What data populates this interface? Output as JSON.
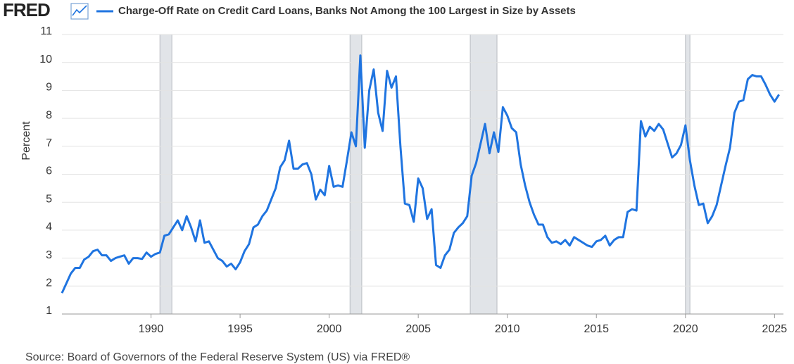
{
  "logo": "FRED",
  "chart_data": {
    "type": "line",
    "y_label": "Percent",
    "source": "Source: Board of Governors of the Federal Reserve System (US) via FRED®",
    "x": [
      1985,
      1985.25,
      1985.5,
      1985.75,
      1986,
      1986.25,
      1986.5,
      1986.75,
      1987,
      1987.25,
      1987.5,
      1987.75,
      1988,
      1988.25,
      1988.5,
      1988.75,
      1989,
      1989.25,
      1989.5,
      1989.75,
      1990,
      1990.25,
      1990.5,
      1990.75,
      1991,
      1991.25,
      1991.5,
      1991.75,
      1992,
      1992.25,
      1992.5,
      1992.75,
      1993,
      1993.25,
      1993.5,
      1993.75,
      1994,
      1994.25,
      1994.5,
      1994.75,
      1995,
      1995.25,
      1995.5,
      1995.75,
      1996,
      1996.25,
      1996.5,
      1996.75,
      1997,
      1997.25,
      1997.5,
      1997.75,
      1998,
      1998.25,
      1998.5,
      1998.75,
      1999,
      1999.25,
      1999.5,
      1999.75,
      2000,
      2000.25,
      2000.5,
      2000.75,
      2001,
      2001.25,
      2001.5,
      2001.75,
      2002,
      2002.25,
      2002.5,
      2002.75,
      2003,
      2003.25,
      2003.5,
      2003.75,
      2004,
      2004.25,
      2004.5,
      2004.75,
      2005,
      2005.25,
      2005.5,
      2005.75,
      2006,
      2006.25,
      2006.5,
      2006.75,
      2007,
      2007.25,
      2007.5,
      2007.75,
      2008,
      2008.25,
      2008.5,
      2008.75,
      2009,
      2009.25,
      2009.5,
      2009.75,
      2010,
      2010.25,
      2010.5,
      2010.75,
      2011,
      2011.25,
      2011.5,
      2011.75,
      2012,
      2012.25,
      2012.5,
      2012.75,
      2013,
      2013.25,
      2013.5,
      2013.75,
      2014,
      2014.25,
      2014.5,
      2014.75,
      2015,
      2015.25,
      2015.5,
      2015.75,
      2016,
      2016.25,
      2016.5,
      2016.75,
      2017,
      2017.25,
      2017.5,
      2017.75,
      2018,
      2018.25,
      2018.5,
      2018.75,
      2019,
      2019.25,
      2019.5,
      2019.75,
      2020,
      2020.25,
      2020.5,
      2020.75,
      2021,
      2021.25,
      2021.5,
      2021.75,
      2022,
      2022.25,
      2022.5,
      2022.75,
      2023,
      2023.25,
      2023.5,
      2023.75,
      2024,
      2024.25,
      2024.5,
      2024.75,
      2025,
      2025.25
    ],
    "series": [
      {
        "name": "Charge-Off Rate on Credit Card Loans, Banks Not Among the 100 Largest in Size by Assets",
        "color": "#1f74e0",
        "values": [
          1.75,
          2.1,
          2.45,
          2.65,
          2.65,
          2.95,
          3.05,
          3.25,
          3.3,
          3.1,
          3.1,
          2.9,
          3.0,
          3.05,
          3.1,
          2.8,
          3.0,
          3.0,
          2.97,
          3.2,
          3.05,
          3.15,
          3.2,
          3.8,
          3.85,
          4.1,
          4.35,
          4.0,
          4.5,
          4.1,
          3.6,
          4.35,
          3.55,
          3.6,
          3.3,
          3.0,
          2.9,
          2.7,
          2.8,
          2.6,
          2.85,
          3.25,
          3.5,
          4.1,
          4.2,
          4.5,
          4.7,
          5.1,
          5.5,
          6.25,
          6.5,
          7.2,
          6.2,
          6.2,
          6.35,
          6.4,
          6.0,
          5.1,
          5.45,
          5.25,
          6.3,
          5.55,
          5.6,
          5.55,
          6.5,
          7.5,
          7.0,
          10.25,
          6.95,
          9.0,
          9.75,
          8.2,
          7.55,
          9.7,
          9.1,
          9.5,
          7.0,
          4.95,
          4.9,
          4.3,
          5.85,
          5.5,
          4.4,
          4.75,
          2.75,
          2.65,
          3.1,
          3.3,
          3.9,
          4.1,
          4.25,
          4.5,
          5.95,
          6.4,
          7.1,
          7.8,
          6.75,
          7.5,
          6.8,
          8.4,
          8.1,
          7.65,
          7.5,
          6.35,
          5.6,
          5.0,
          4.55,
          4.2,
          4.2,
          3.75,
          3.55,
          3.6,
          3.5,
          3.65,
          3.45,
          3.75,
          3.65,
          3.55,
          3.45,
          3.4,
          3.6,
          3.65,
          3.8,
          3.45,
          3.65,
          3.75,
          3.75,
          4.65,
          4.75,
          4.7,
          7.9,
          7.35,
          7.7,
          7.55,
          7.8,
          7.6,
          7.1,
          6.6,
          6.75,
          7.05,
          7.75,
          6.5,
          5.6,
          4.9,
          4.95,
          4.25,
          4.5,
          4.9,
          5.6,
          6.3,
          6.95,
          8.2,
          8.6,
          8.65,
          9.4,
          9.55,
          9.5,
          9.5,
          9.2,
          8.85,
          8.6,
          8.85
        ]
      }
    ],
    "recessions": [
      [
        1990.5,
        1991.17
      ],
      [
        2001.17,
        2001.83
      ],
      [
        2007.92,
        2009.42
      ],
      [
        2020.0,
        2020.25
      ]
    ],
    "recession_color": "#e1e4e8",
    "xlim": [
      1985,
      2025.5
    ],
    "xticks": [
      1990,
      1995,
      2000,
      2005,
      2010,
      2015,
      2020,
      2025
    ],
    "ylim": [
      1,
      11
    ],
    "yticks": [
      1,
      2,
      3,
      4,
      5,
      6,
      7,
      8,
      9,
      10,
      11
    ],
    "grid": true
  }
}
